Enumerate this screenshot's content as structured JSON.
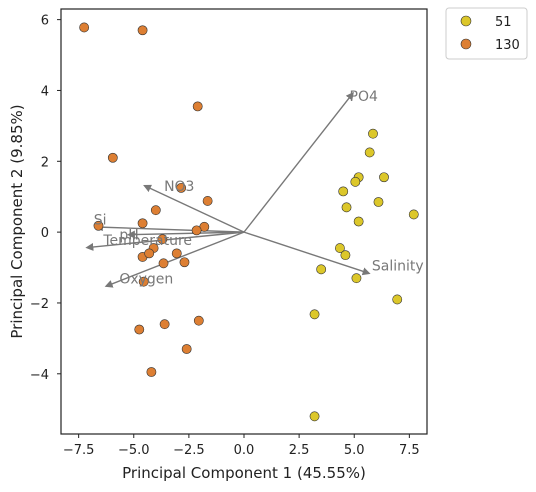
{
  "chart_data": {
    "type": "scatter",
    "title": "",
    "xlabel": "Principal Component 1 (45.55%)",
    "ylabel": "Principal Component 2 (9.85%)",
    "xlim": [
      -8.3,
      8.3
    ],
    "ylim": [
      -5.7,
      6.3
    ],
    "xticks": [
      -7.5,
      -5.0,
      -2.5,
      0.0,
      2.5,
      5.0,
      7.5
    ],
    "xtick_labels": [
      "−7.5",
      "−5.0",
      "−2.5",
      "0.0",
      "2.5",
      "5.0",
      "7.5"
    ],
    "yticks": [
      -4,
      -2,
      0,
      2,
      4,
      6
    ],
    "ytick_labels": [
      "−4",
      "−2",
      "0",
      "2",
      "4",
      "6"
    ],
    "grid": false,
    "legend_position": "outside-top-right",
    "series": [
      {
        "name": "51",
        "color": "#dcc72a",
        "points": [
          [
            5.85,
            2.78
          ],
          [
            5.7,
            2.25
          ],
          [
            5.2,
            1.55
          ],
          [
            6.35,
            1.55
          ],
          [
            5.05,
            1.42
          ],
          [
            4.5,
            1.15
          ],
          [
            6.1,
            0.85
          ],
          [
            7.7,
            0.5
          ],
          [
            4.65,
            0.7
          ],
          [
            5.2,
            0.3
          ],
          [
            4.35,
            -0.45
          ],
          [
            4.6,
            -0.65
          ],
          [
            3.5,
            -1.05
          ],
          [
            5.1,
            -1.3
          ],
          [
            6.95,
            -1.9
          ],
          [
            3.2,
            -2.32
          ],
          [
            3.2,
            -5.2
          ]
        ]
      },
      {
        "name": "130",
        "color": "#dd7f33",
        "points": [
          [
            -7.25,
            5.78
          ],
          [
            -4.6,
            5.7
          ],
          [
            -2.1,
            3.55
          ],
          [
            -5.95,
            2.1
          ],
          [
            -2.85,
            1.25
          ],
          [
            -1.65,
            0.88
          ],
          [
            -4.0,
            0.62
          ],
          [
            -4.6,
            0.25
          ],
          [
            -1.8,
            0.15
          ],
          [
            -2.15,
            0.05
          ],
          [
            -6.6,
            0.18
          ],
          [
            -3.7,
            -0.2
          ],
          [
            -4.1,
            -0.45
          ],
          [
            -3.05,
            -0.6
          ],
          [
            -4.6,
            -0.7
          ],
          [
            -4.3,
            -0.6
          ],
          [
            -2.7,
            -0.85
          ],
          [
            -3.65,
            -0.88
          ],
          [
            -4.55,
            -1.4
          ],
          [
            -3.6,
            -2.6
          ],
          [
            -2.05,
            -2.5
          ],
          [
            -4.75,
            -2.75
          ],
          [
            -2.6,
            -3.3
          ],
          [
            -4.2,
            -3.95
          ]
        ]
      }
    ],
    "loadings": [
      {
        "label": "PO4",
        "x": 3.4,
        "y": 2.7,
        "label_x": 3.3,
        "label_y": 2.65
      },
      {
        "label": "NO3",
        "x": -3.1,
        "y": 0.9,
        "label_x": -2.5,
        "label_y": 0.9
      },
      {
        "label": "Si",
        "x": -4.6,
        "y": 0.1,
        "label_x": -4.7,
        "label_y": 0.25
      },
      {
        "label": "pH",
        "x": -3.6,
        "y": -0.05,
        "label_x": -3.9,
        "label_y": -0.05
      },
      {
        "label": "Temperature",
        "x": -4.9,
        "y": -0.3,
        "label_x": -4.4,
        "label_y": -0.15
      },
      {
        "label": "Oxygen",
        "x": -4.3,
        "y": -1.05,
        "label_x": -3.9,
        "label_y": -0.9
      },
      {
        "label": "Salinity",
        "x": 3.9,
        "y": -0.8,
        "label_x": 4.0,
        "label_y": -0.65
      }
    ],
    "arrow_color": "#787878",
    "loading_scale": 1.45
  }
}
